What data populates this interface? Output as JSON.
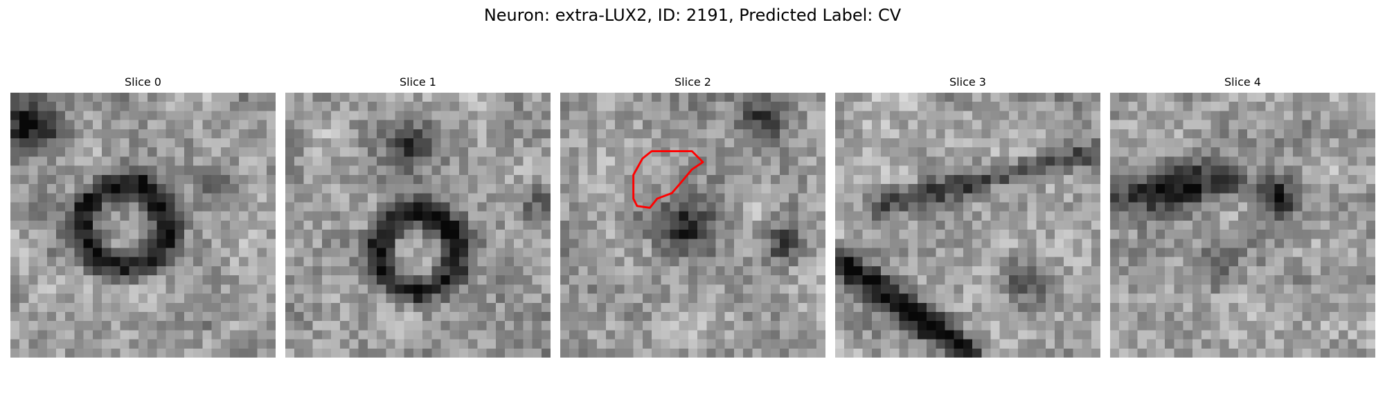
{
  "figure": {
    "title": "Neuron: extra-LUX2, ID: 2191, Predicted Label: CV"
  },
  "panels": [
    {
      "title": "Slice 0",
      "seed": 11,
      "has_contour": false
    },
    {
      "title": "Slice 1",
      "seed": 23,
      "has_contour": false
    },
    {
      "title": "Slice 2",
      "seed": 37,
      "has_contour": true
    },
    {
      "title": "Slice 3",
      "seed": 41,
      "has_contour": false
    },
    {
      "title": "Slice 4",
      "seed": 59,
      "has_contour": false
    }
  ],
  "contour": {
    "color": "#ff0000",
    "points": [
      [
        12.6,
        6.4
      ],
      [
        14.4,
        6.4
      ],
      [
        15.6,
        7.6
      ],
      [
        14.4,
        8.4
      ],
      [
        13.4,
        9.6
      ],
      [
        12.2,
        11
      ],
      [
        10.6,
        11.6
      ],
      [
        9.8,
        12.6
      ],
      [
        8.4,
        12.4
      ],
      [
        8,
        11.6
      ],
      [
        8,
        9
      ],
      [
        9,
        7.2
      ],
      [
        10,
        6.4
      ]
    ]
  },
  "grid_size": 29
}
